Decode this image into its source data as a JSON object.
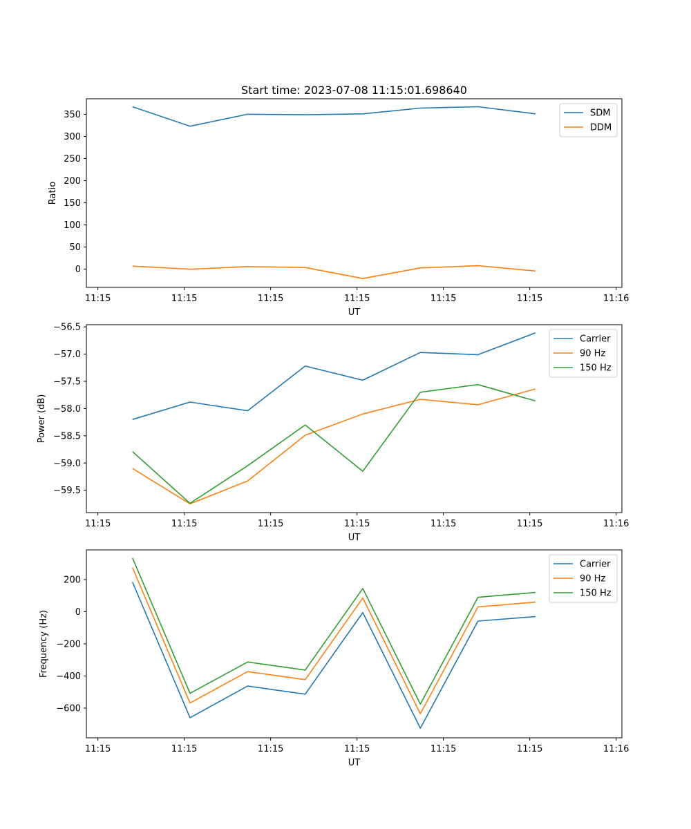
{
  "chart_data": [
    {
      "type": "line",
      "title": "Start time: 2023-07-08 11:15:01.698640",
      "xlabel": "UT",
      "ylabel": "Ratio",
      "x": [
        1,
        2,
        3,
        4,
        5,
        6,
        7,
        8
      ],
      "xlim": [
        0.2,
        9.5
      ],
      "xticks": [
        0.4,
        1.9,
        3.4,
        4.9,
        6.4,
        7.9,
        9.4
      ],
      "xtick_labels": [
        "11:15",
        "11:15",
        "11:15",
        "11:15",
        "11:15",
        "11:15",
        "11:16"
      ],
      "ylim": [
        -41,
        385
      ],
      "yticks": [
        0,
        50,
        100,
        150,
        200,
        250,
        300,
        350
      ],
      "ytick_labels": [
        "0",
        "50",
        "100",
        "150",
        "200",
        "250",
        "300",
        "350"
      ],
      "legend": "top-right",
      "series": [
        {
          "name": "SDM",
          "color": "#1f77b4",
          "values": [
            367,
            323,
            350,
            349,
            351,
            364,
            367,
            351
          ]
        },
        {
          "name": "DDM",
          "color": "#ff7f0e",
          "values": [
            7,
            0,
            6,
            4,
            -21,
            3,
            8,
            -4
          ]
        }
      ]
    },
    {
      "type": "line",
      "title": "",
      "xlabel": "UT",
      "ylabel": "Power (dB)",
      "x": [
        1,
        2,
        3,
        4,
        5,
        6,
        7,
        8
      ],
      "xlim": [
        0.2,
        9.5
      ],
      "xticks": [
        0.4,
        1.9,
        3.4,
        4.9,
        6.4,
        7.9,
        9.4
      ],
      "xtick_labels": [
        "11:15",
        "11:15",
        "11:15",
        "11:15",
        "11:15",
        "11:15",
        "11:16"
      ],
      "ylim": [
        -59.91,
        -56.46
      ],
      "yticks": [
        -59.5,
        -59.0,
        -58.5,
        -58.0,
        -57.5,
        -57.0,
        -56.5
      ],
      "ytick_labels": [
        "−59.5",
        "−59.0",
        "−58.5",
        "−58.0",
        "−57.5",
        "−57.0",
        "−56.5"
      ],
      "legend": "top-right",
      "series": [
        {
          "name": "Carrier",
          "color": "#1f77b4",
          "values": [
            -58.2,
            -57.88,
            -58.04,
            -57.22,
            -57.48,
            -56.97,
            -57.01,
            -56.61
          ]
        },
        {
          "name": "90 Hz",
          "color": "#ff7f0e",
          "values": [
            -59.1,
            -59.75,
            -59.33,
            -58.49,
            -58.1,
            -57.83,
            -57.93,
            -57.64
          ]
        },
        {
          "name": "150 Hz",
          "color": "#2ca02c",
          "values": [
            -58.79,
            -59.74,
            -59.05,
            -58.3,
            -59.15,
            -57.7,
            -57.56,
            -57.86
          ]
        }
      ]
    },
    {
      "type": "line",
      "title": "",
      "xlabel": "UT",
      "ylabel": "Frequency (Hz)",
      "x": [
        1,
        2,
        3,
        4,
        5,
        6,
        7,
        8
      ],
      "xlim": [
        0.2,
        9.5
      ],
      "xticks": [
        0.4,
        1.9,
        3.4,
        4.9,
        6.4,
        7.9,
        9.4
      ],
      "xtick_labels": [
        "11:15",
        "11:15",
        "11:15",
        "11:15",
        "11:15",
        "11:15",
        "11:16"
      ],
      "ylim": [
        -785,
        385
      ],
      "yticks": [
        -600,
        -400,
        -200,
        0,
        200
      ],
      "ytick_labels": [
        "−600",
        "−400",
        "−200",
        "0",
        "200"
      ],
      "legend": "top-right",
      "series": [
        {
          "name": "Carrier",
          "color": "#1f77b4",
          "values": [
            185,
            -660,
            -463,
            -513,
            -5,
            -725,
            -58,
            -30
          ]
        },
        {
          "name": "90 Hz",
          "color": "#ff7f0e",
          "values": [
            275,
            -568,
            -373,
            -423,
            85,
            -635,
            30,
            60
          ]
        },
        {
          "name": "150 Hz",
          "color": "#2ca02c",
          "values": [
            335,
            -508,
            -313,
            -363,
            145,
            -575,
            90,
            120
          ]
        }
      ]
    }
  ]
}
